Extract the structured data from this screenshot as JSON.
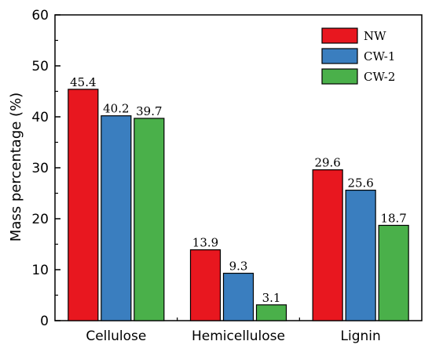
{
  "chart_data": {
    "type": "bar",
    "categories": [
      "Cellulose",
      "Hemicellulose",
      "Lignin"
    ],
    "series": [
      {
        "name": "NW",
        "values": [
          45.4,
          13.9,
          29.6
        ],
        "labels": [
          "45.4",
          "13.9",
          "29.6"
        ],
        "color": "#e8171f"
      },
      {
        "name": "CW-1",
        "values": [
          40.2,
          9.3,
          25.6
        ],
        "labels": [
          "40.2",
          "9.3",
          "25.6"
        ],
        "color": "#3a7ebf"
      },
      {
        "name": "CW-2",
        "values": [
          39.7,
          3.1,
          18.7
        ],
        "labels": [
          "39.7",
          "3.1",
          "18.7"
        ],
        "color": "#4ab04a"
      }
    ],
    "xlabel": "",
    "ylabel": "Mass percentage (%)",
    "ylim": [
      0,
      60
    ],
    "yticks": [
      "0",
      "10",
      "20",
      "30",
      "40",
      "50",
      "60"
    ],
    "grid": false,
    "legend_position": "top-right"
  }
}
